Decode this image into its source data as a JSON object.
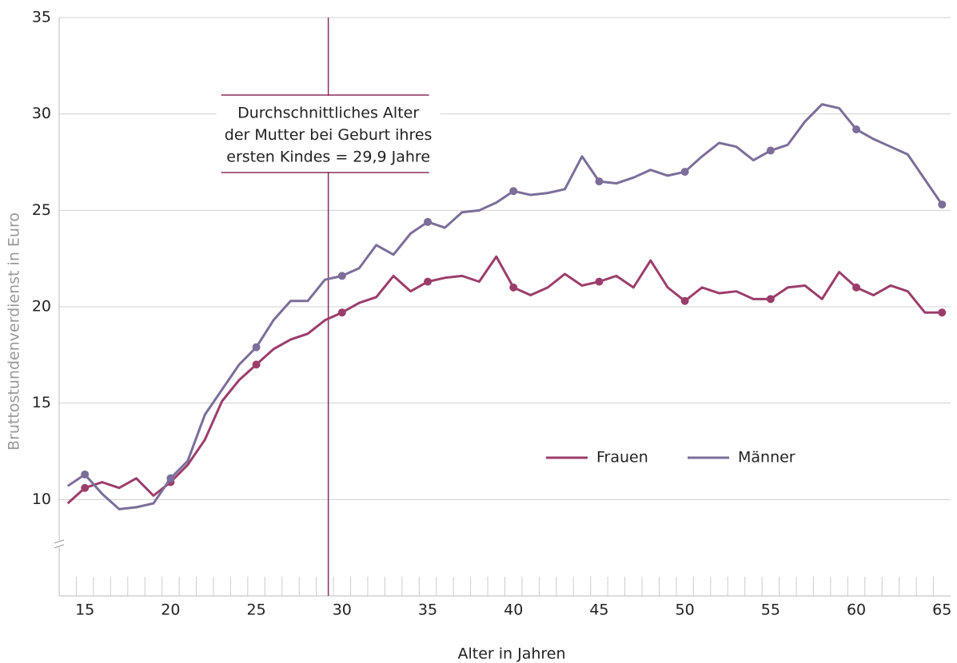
{
  "chart_data": {
    "type": "line",
    "x": [
      14,
      15,
      16,
      17,
      18,
      19,
      20,
      21,
      22,
      23,
      24,
      25,
      26,
      27,
      28,
      29,
      30,
      31,
      32,
      33,
      34,
      35,
      36,
      37,
      38,
      39,
      40,
      41,
      42,
      43,
      44,
      45,
      46,
      47,
      48,
      49,
      50,
      51,
      52,
      53,
      54,
      55,
      56,
      57,
      58,
      59,
      60,
      61,
      62,
      63,
      64,
      65
    ],
    "series": [
      {
        "name": "Frauen",
        "color": "#9b3d6b",
        "values": [
          9.8,
          10.6,
          10.9,
          10.6,
          11.1,
          10.2,
          10.9,
          11.8,
          13.1,
          15.1,
          16.2,
          17.0,
          17.8,
          18.3,
          18.6,
          19.3,
          19.7,
          20.2,
          20.5,
          21.6,
          20.8,
          21.3,
          21.5,
          21.6,
          21.3,
          22.6,
          21.0,
          20.6,
          21.0,
          21.7,
          21.1,
          21.3,
          21.6,
          21.0,
          22.4,
          21.0,
          20.3,
          21.0,
          20.7,
          20.8,
          20.4,
          20.4,
          21.0,
          21.1,
          20.4,
          21.8,
          21.0,
          20.6,
          21.1,
          20.8,
          19.7,
          19.7
        ]
      },
      {
        "name": "Männer",
        "color": "#7b6e99",
        "values": [
          10.7,
          11.3,
          10.3,
          9.5,
          9.6,
          9.8,
          11.1,
          12.0,
          14.4,
          15.7,
          17.0,
          17.9,
          19.3,
          20.3,
          20.3,
          21.4,
          21.6,
          22.0,
          23.2,
          22.7,
          23.8,
          24.4,
          24.1,
          24.9,
          25.0,
          25.4,
          26.0,
          25.8,
          25.9,
          26.1,
          27.8,
          26.5,
          26.4,
          26.7,
          27.1,
          26.8,
          27.0,
          27.8,
          28.5,
          28.3,
          27.6,
          28.1,
          28.4,
          29.6,
          30.5,
          30.3,
          29.2,
          28.7,
          28.3,
          27.9,
          26.6,
          25.3
        ]
      }
    ],
    "xlabel": "Alter in Jahren",
    "ylabel": "Bruttostundenverdienst in Euro",
    "xlim": [
      13.5,
      65.5
    ],
    "xticks": [
      15,
      20,
      25,
      30,
      35,
      40,
      45,
      50,
      55,
      60,
      65
    ],
    "ylim": [
      5,
      35
    ],
    "yticks": [
      10,
      15,
      20,
      25,
      30,
      35
    ],
    "grid": true,
    "annotation": {
      "x": 29.2,
      "lines": [
        "Durchschnittliches Alter",
        "der Mutter bei Geburt ihres",
        "ersten Kindes = 29,9 Jahre"
      ]
    }
  }
}
